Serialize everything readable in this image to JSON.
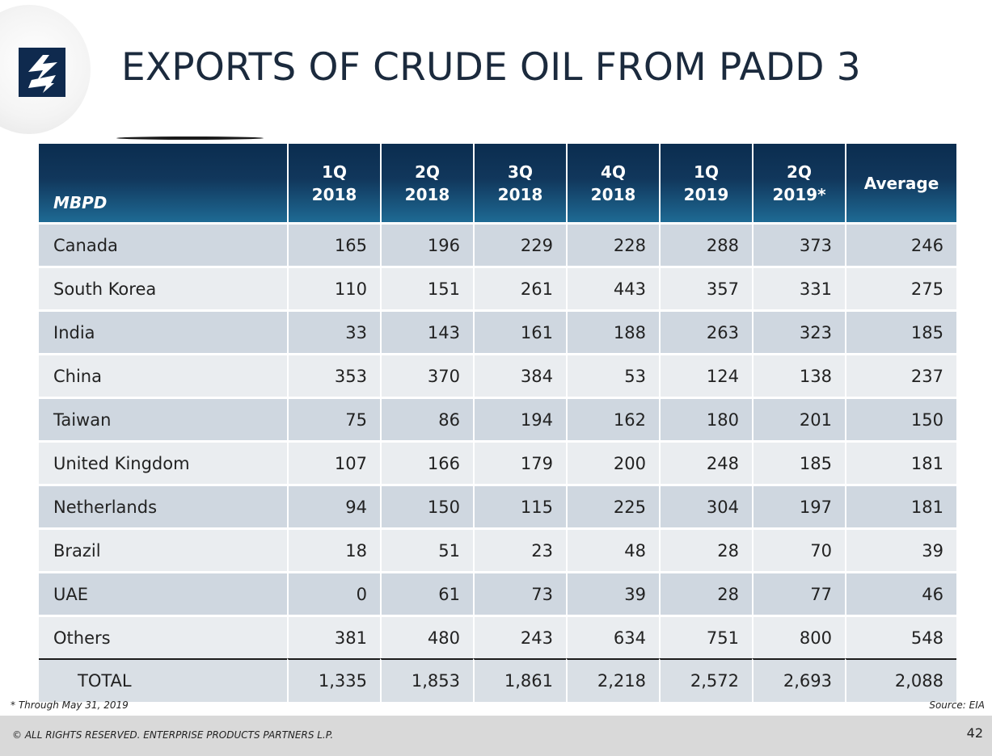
{
  "slide": {
    "title": "EXPORTS OF CRUDE OIL FROM PADD 3",
    "footnote": "* Through May 31, 2019",
    "source": "Source:  EIA",
    "copyright": "© ALL RIGHTS RESERVED. ENTERPRISE PRODUCTS PARTNERS L.P.",
    "page_number": "42",
    "logo_icon": "enterprise-logo-icon",
    "colors": {
      "header_dark": "#0b2d4f",
      "header_light": "#1e6a94",
      "row_dark": "#cfd7e0",
      "row_light": "#eaedf0",
      "logo_blue": "#0f2a4e"
    }
  },
  "table": {
    "unit_label": "MBPD",
    "columns": [
      {
        "line1": "1Q",
        "line2": "2018"
      },
      {
        "line1": "2Q",
        "line2": "2018"
      },
      {
        "line1": "3Q",
        "line2": "2018"
      },
      {
        "line1": "4Q",
        "line2": "2018"
      },
      {
        "line1": "1Q",
        "line2": "2019"
      },
      {
        "line1": "2Q",
        "line2": "2019*"
      },
      {
        "line1": "Average",
        "line2": ""
      }
    ],
    "rows": [
      {
        "name": "Canada",
        "values": [
          "165",
          "196",
          "229",
          "228",
          "288",
          "373",
          "246"
        ]
      },
      {
        "name": "South Korea",
        "values": [
          "110",
          "151",
          "261",
          "443",
          "357",
          "331",
          "275"
        ]
      },
      {
        "name": "India",
        "values": [
          "33",
          "143",
          "161",
          "188",
          "263",
          "323",
          "185"
        ]
      },
      {
        "name": "China",
        "values": [
          "353",
          "370",
          "384",
          "53",
          "124",
          "138",
          "237"
        ]
      },
      {
        "name": "Taiwan",
        "values": [
          "75",
          "86",
          "194",
          "162",
          "180",
          "201",
          "150"
        ]
      },
      {
        "name": "United Kingdom",
        "values": [
          "107",
          "166",
          "179",
          "200",
          "248",
          "185",
          "181"
        ]
      },
      {
        "name": "Netherlands",
        "values": [
          "94",
          "150",
          "115",
          "225",
          "304",
          "197",
          "181"
        ]
      },
      {
        "name": "Brazil",
        "values": [
          "18",
          "51",
          "23",
          "48",
          "28",
          "70",
          "39"
        ]
      },
      {
        "name": "UAE",
        "values": [
          "0",
          "61",
          "73",
          "39",
          "28",
          "77",
          "46"
        ]
      },
      {
        "name": "Others",
        "values": [
          "381",
          "480",
          "243",
          "634",
          "751",
          "800",
          "548"
        ]
      }
    ],
    "total": {
      "name": "TOTAL",
      "values": [
        "1,335",
        "1,853",
        "1,861",
        "2,218",
        "2,572",
        "2,693",
        "2,088"
      ]
    }
  }
}
